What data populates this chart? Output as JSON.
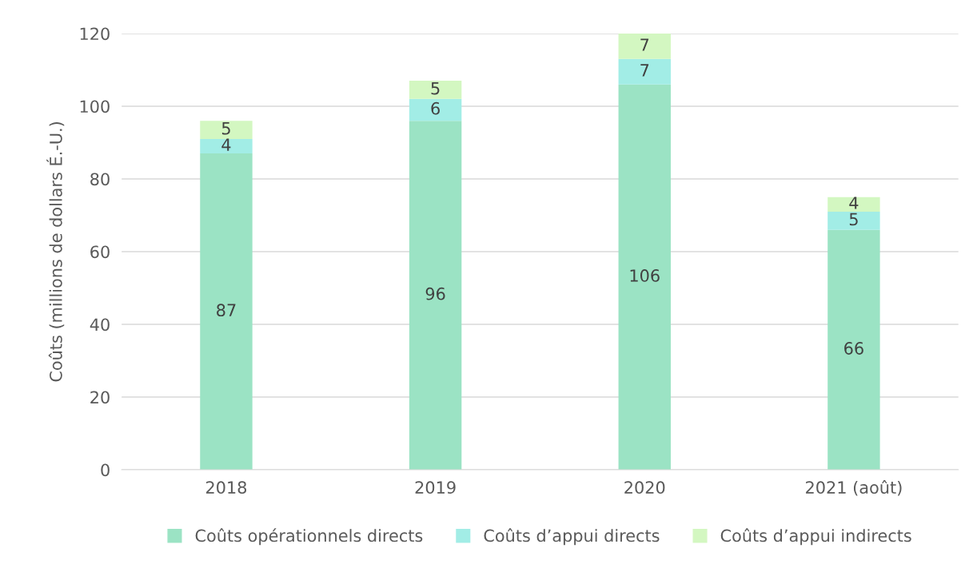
{
  "chart_data": {
    "type": "bar",
    "stacked": true,
    "ylabel": "Coûts (millions de dollars É.-U.)",
    "categories": [
      "2018",
      "2019",
      "2020",
      "2021 (août)"
    ],
    "series": [
      {
        "name": "Coûts opérationnels directs",
        "color": "#9be3c4",
        "values": [
          87,
          96,
          106,
          66
        ]
      },
      {
        "name": "Coûts d’appui directs",
        "color": "#a2ede6",
        "values": [
          4,
          6,
          7,
          5
        ]
      },
      {
        "name": "Coûts d’appui indirects",
        "color": "#d3f7c1",
        "values": [
          5,
          5,
          7,
          4
        ]
      }
    ],
    "ylim": [
      0,
      120
    ],
    "yticks": [
      0,
      20,
      40,
      60,
      80,
      100,
      120
    ],
    "grid": "y",
    "legend": "bottom",
    "data_labels": true
  }
}
